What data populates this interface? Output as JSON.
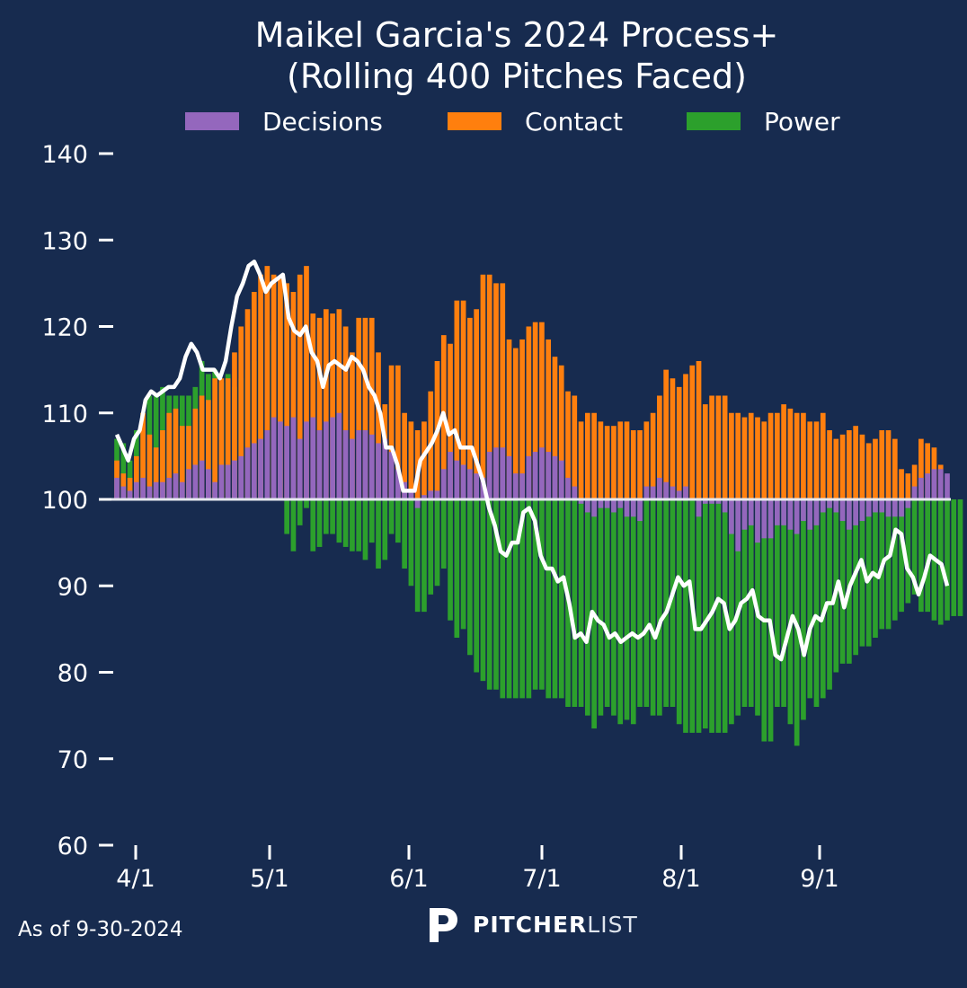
{
  "chart_data": {
    "type": "bar",
    "title_line1": "Maikel Garcia's 2024 Process+",
    "title_line2": "(Rolling 400 Pitches Faced)",
    "baseline": 100,
    "ylim": [
      60,
      140
    ],
    "yticks": [
      "140",
      "130",
      "120",
      "110",
      "100",
      "90",
      "80",
      "70",
      "60"
    ],
    "xticks": [
      "4/1",
      "5/1",
      "6/1",
      "7/1",
      "8/1",
      "9/1"
    ],
    "legend": [
      {
        "name": "Decisions",
        "color": "#9467bd"
      },
      {
        "name": "Contact",
        "color": "#ff7f0e"
      },
      {
        "name": "Power",
        "color": "#2ca02c"
      }
    ],
    "line_color": "#ffffff",
    "series": [
      {
        "name": "Decisions",
        "values": [
          102.5,
          101.5,
          101,
          102,
          102.5,
          101.5,
          102,
          102,
          102.5,
          103,
          102,
          103.5,
          104,
          104.5,
          103.5,
          102,
          104,
          104,
          104.5,
          105,
          106,
          106.5,
          107,
          108,
          109.5,
          109,
          108.5,
          109.5,
          107,
          109,
          109.5,
          108,
          109,
          109.5,
          110,
          108,
          107,
          108,
          108,
          107.5,
          106.5,
          107,
          105.5,
          103.5,
          102,
          101,
          99,
          100.5,
          101,
          101,
          103.5,
          105.5,
          104.5,
          104,
          103.5,
          103,
          102.5,
          105.5,
          106,
          106,
          105,
          103,
          103,
          105,
          105.5,
          106,
          105.5,
          105,
          104.5,
          102.5,
          101.5,
          99.5,
          98.5,
          98,
          99,
          99,
          98.5,
          99,
          98,
          98,
          97.5,
          101.5,
          101.5,
          102.5,
          102,
          101.5,
          101,
          101.5,
          100,
          98,
          99.5,
          99.5,
          99.5,
          98.5,
          96,
          94,
          96.5,
          97,
          95,
          95.5,
          95.5,
          97,
          97,
          96.5,
          96,
          97.5,
          96.5,
          97,
          98.5,
          99,
          98.5,
          97.5,
          96.5,
          97,
          97.5,
          98,
          98.5,
          98.5,
          98,
          98,
          98,
          99,
          101.5,
          102.5,
          103,
          103.5,
          103.5,
          103
        ]
      },
      {
        "name": "Contact",
        "values": [
          104.5,
          103,
          102.5,
          105,
          110,
          107.5,
          106,
          108,
          110,
          110.5,
          108.5,
          108.5,
          110.5,
          112,
          111.5,
          114,
          114,
          114,
          117,
          120,
          122,
          124,
          126,
          127,
          126,
          125.5,
          125,
          124,
          126,
          127,
          121.5,
          121,
          122,
          121.5,
          122,
          120,
          117,
          121,
          121,
          121,
          117,
          111,
          115.5,
          115.5,
          110,
          109,
          108,
          109,
          112.5,
          116,
          119,
          118,
          123,
          123,
          121,
          122,
          126,
          126,
          125,
          125,
          118.5,
          117.5,
          118.5,
          120,
          120.5,
          120.5,
          118.5,
          116.5,
          115.5,
          112.5,
          112,
          109,
          110,
          110,
          109,
          108.5,
          108.5,
          109,
          109,
          108,
          108,
          109,
          110,
          112,
          115,
          114,
          113,
          114.5,
          115.5,
          116,
          111,
          112,
          112,
          112,
          110,
          110,
          109.5,
          110,
          109.5,
          109,
          110,
          110,
          111,
          110.5,
          110,
          110,
          109,
          109,
          110,
          108,
          107,
          107.5,
          108,
          108.5,
          107.5,
          106.5,
          107,
          108,
          108,
          107,
          103.5,
          103,
          104,
          107,
          106.5,
          106,
          104
        ]
      },
      {
        "name": "Power",
        "values": [
          107,
          106.5,
          104.5,
          108,
          110,
          112,
          112,
          113,
          112,
          112,
          112,
          112,
          113,
          116,
          114.5,
          115,
          113.5,
          114.5,
          113,
          114,
          115,
          116,
          118.5,
          119,
          119.5,
          124,
          96,
          94,
          97,
          99,
          94,
          94.5,
          96,
          96,
          95,
          94.5,
          94,
          94,
          93,
          95,
          92,
          93,
          96,
          95,
          92,
          90,
          87,
          87,
          89,
          90,
          92,
          86,
          84,
          85,
          82,
          80,
          79,
          78,
          78,
          77,
          77,
          77,
          77,
          77,
          78,
          78,
          77,
          77,
          77,
          76,
          76,
          76,
          75,
          73.5,
          75,
          76,
          75,
          74,
          74.5,
          74,
          76,
          76,
          75,
          75,
          76,
          76,
          74,
          73,
          73,
          73,
          73.5,
          73,
          73,
          73,
          74,
          75,
          76,
          76,
          75,
          72,
          72,
          76,
          76,
          74,
          71.5,
          74.5,
          77,
          76,
          77,
          78,
          80,
          81,
          81,
          82,
          83,
          83,
          84,
          85,
          85,
          86,
          87,
          88,
          89,
          87,
          87,
          86,
          85.5,
          86,
          86.5,
          86.5
        ]
      }
    ],
    "total_line_values": [
      107.5,
      106,
      104.5,
      107,
      108,
      111.5,
      112.5,
      112,
      112.5,
      113,
      113,
      114,
      116.5,
      118,
      117,
      115,
      115,
      115,
      114,
      116,
      120,
      123.5,
      125,
      127,
      127.5,
      126,
      124,
      125,
      125.5,
      126,
      121,
      119.5,
      119,
      120,
      117,
      116,
      113,
      115.5,
      116,
      115.5,
      115,
      116.5,
      116,
      115,
      113,
      112,
      110,
      106,
      106,
      104,
      101,
      101,
      101,
      104.5,
      105.5,
      106.5,
      108,
      110,
      107.5,
      108,
      106,
      106,
      106,
      104,
      102,
      99,
      97,
      94,
      93.5,
      95,
      95,
      98.5,
      99,
      97.5,
      93.5,
      92,
      92,
      90.5,
      91,
      88,
      84,
      84.5,
      83.5,
      87,
      86,
      85.5,
      84,
      84.5,
      83.5,
      84,
      84.5,
      84,
      84.5,
      85.5,
      84,
      86,
      87,
      89,
      91,
      90,
      90.5,
      85,
      85,
      86,
      87,
      88.5,
      88,
      85,
      86,
      88,
      88.5,
      89.5,
      86.5,
      86,
      86,
      82,
      81.5,
      84,
      86.5,
      85,
      82,
      85,
      86.5,
      86,
      88,
      88,
      90.5,
      87.5,
      90,
      91.5,
      93,
      90.5,
      91.5,
      91,
      93,
      93.5,
      96.5,
      96,
      92,
      91,
      89,
      91,
      93.5,
      93,
      92.5,
      90
    ]
  },
  "footer": {
    "as_of": "As of 9-30-2024",
    "logo_bold": "PITCHER",
    "logo_light": "LIST"
  }
}
